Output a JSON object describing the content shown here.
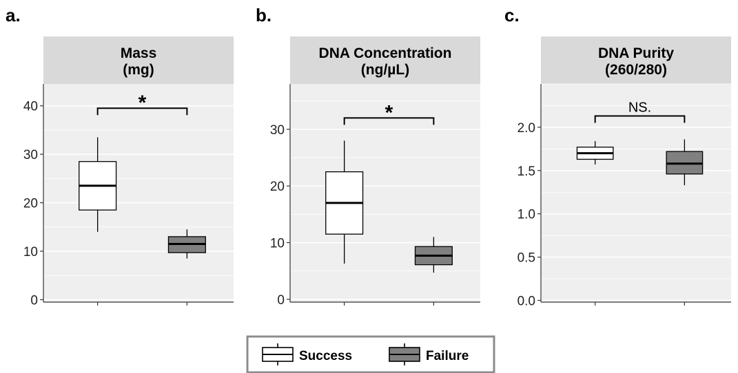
{
  "colors": {
    "panel_background": "#efefef",
    "strip_background": "#d9d9d9",
    "gridline": "#ffffff",
    "success_fill": "#ffffff",
    "failure_fill": "#808080",
    "outline": "#000000",
    "legend_border": "#8c8c8c"
  },
  "legend": {
    "position": "bottom",
    "items": [
      {
        "label": "Success",
        "fill": "#ffffff"
      },
      {
        "label": "Failure",
        "fill": "#808080"
      }
    ]
  },
  "chart_data": [
    {
      "type": "box",
      "panel_letter": "a.",
      "title_lines": [
        "Mass",
        "(mg)"
      ],
      "ylim": [
        -0.5,
        44.5
      ],
      "yticks": [
        0,
        10,
        20,
        30,
        40
      ],
      "ytick_labels": [
        "0",
        "10",
        "20",
        "30",
        "40"
      ],
      "grid": true,
      "significance": {
        "label": "*",
        "bracket_y": 39.5
      },
      "series": [
        {
          "name": "Success",
          "fill": "#ffffff",
          "whisker_low": 14,
          "q1": 18.5,
          "median": 23.5,
          "q3": 28.5,
          "whisker_high": 33.5
        },
        {
          "name": "Failure",
          "fill": "#808080",
          "whisker_low": 8.5,
          "q1": 9.7,
          "median": 11.5,
          "q3": 13,
          "whisker_high": 14.5
        }
      ]
    },
    {
      "type": "box",
      "panel_letter": "b.",
      "title_lines": [
        "DNA Concentration",
        "(ng/µL)"
      ],
      "ylim": [
        -0.5,
        38
      ],
      "yticks": [
        0,
        10,
        20,
        30
      ],
      "ytick_labels": [
        "0",
        "10",
        "20",
        "30"
      ],
      "grid": true,
      "significance": {
        "label": "*",
        "bracket_y": 32
      },
      "series": [
        {
          "name": "Success",
          "fill": "#ffffff",
          "whisker_low": 6.3,
          "q1": 11.5,
          "median": 17,
          "q3": 22.5,
          "whisker_high": 28
        },
        {
          "name": "Failure",
          "fill": "#808080",
          "whisker_low": 4.7,
          "q1": 6.1,
          "median": 7.7,
          "q3": 9.3,
          "whisker_high": 11
        }
      ]
    },
    {
      "type": "box",
      "panel_letter": "c.",
      "title_lines": [
        "DNA Purity",
        "(260/280)"
      ],
      "ylim": [
        -0.02,
        2.5
      ],
      "yticks": [
        0,
        0.5,
        1,
        1.5,
        2
      ],
      "ytick_labels": [
        "0.0",
        "0.5",
        "1.0",
        "1.5",
        "2.0"
      ],
      "grid": true,
      "significance": {
        "label": "NS.",
        "bracket_y": 2.13
      },
      "series": [
        {
          "name": "Success",
          "fill": "#ffffff",
          "whisker_low": 1.57,
          "q1": 1.63,
          "median": 1.7,
          "q3": 1.77,
          "whisker_high": 1.84
        },
        {
          "name": "Failure",
          "fill": "#808080",
          "whisker_low": 1.33,
          "q1": 1.46,
          "median": 1.58,
          "q3": 1.72,
          "whisker_high": 1.86
        }
      ]
    }
  ]
}
